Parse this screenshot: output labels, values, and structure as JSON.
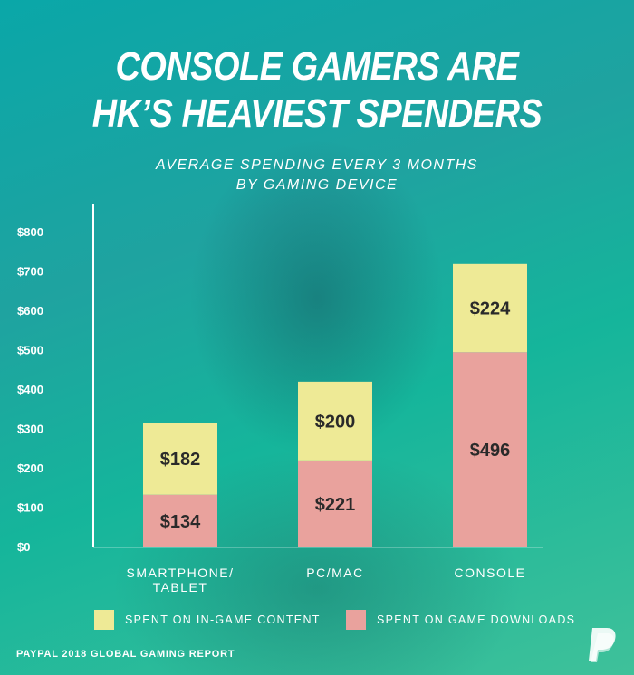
{
  "header": {
    "title_line1": "CONSOLE GAMERS ARE",
    "title_line2": "HK’S HEAVIEST SPENDERS",
    "subtitle_line1": "AVERAGE SPENDING EVERY 3 MONTHS",
    "subtitle_line2": "BY GAMING DEVICE"
  },
  "chart_data": {
    "type": "bar",
    "stacked": true,
    "categories": [
      "SMARTPHONE/\nTABLET",
      "PC/MAC",
      "CONSOLE"
    ],
    "series": [
      {
        "name": "SPENT ON GAME DOWNLOADS",
        "values": [
          134,
          221,
          496
        ],
        "color": "#e9a29d"
      },
      {
        "name": "SPENT ON IN-GAME CONTENT",
        "values": [
          182,
          200,
          224
        ],
        "color": "#eeea96"
      }
    ],
    "value_labels": [
      [
        "$134",
        "$221",
        "$496"
      ],
      [
        "$182",
        "$200",
        "$224"
      ]
    ],
    "ylim": [
      0,
      800
    ],
    "yticks": [
      0,
      100,
      200,
      300,
      400,
      500,
      600,
      700,
      800
    ],
    "ytick_labels": [
      "$0",
      "$100",
      "$200",
      "$300",
      "$400",
      "$500",
      "$600",
      "$700",
      "$800"
    ],
    "grid": false,
    "legend_position": "bottom"
  },
  "legend": {
    "in_game_label": "SPENT ON IN-GAME CONTENT",
    "downloads_label": "SPENT ON GAME DOWNLOADS",
    "in_game_color": "#eeea96",
    "downloads_color": "#e9a29d"
  },
  "footer": {
    "source": "PAYPAL 2018 GLOBAL GAMING REPORT",
    "logo_icon": "paypal-logo-icon"
  }
}
